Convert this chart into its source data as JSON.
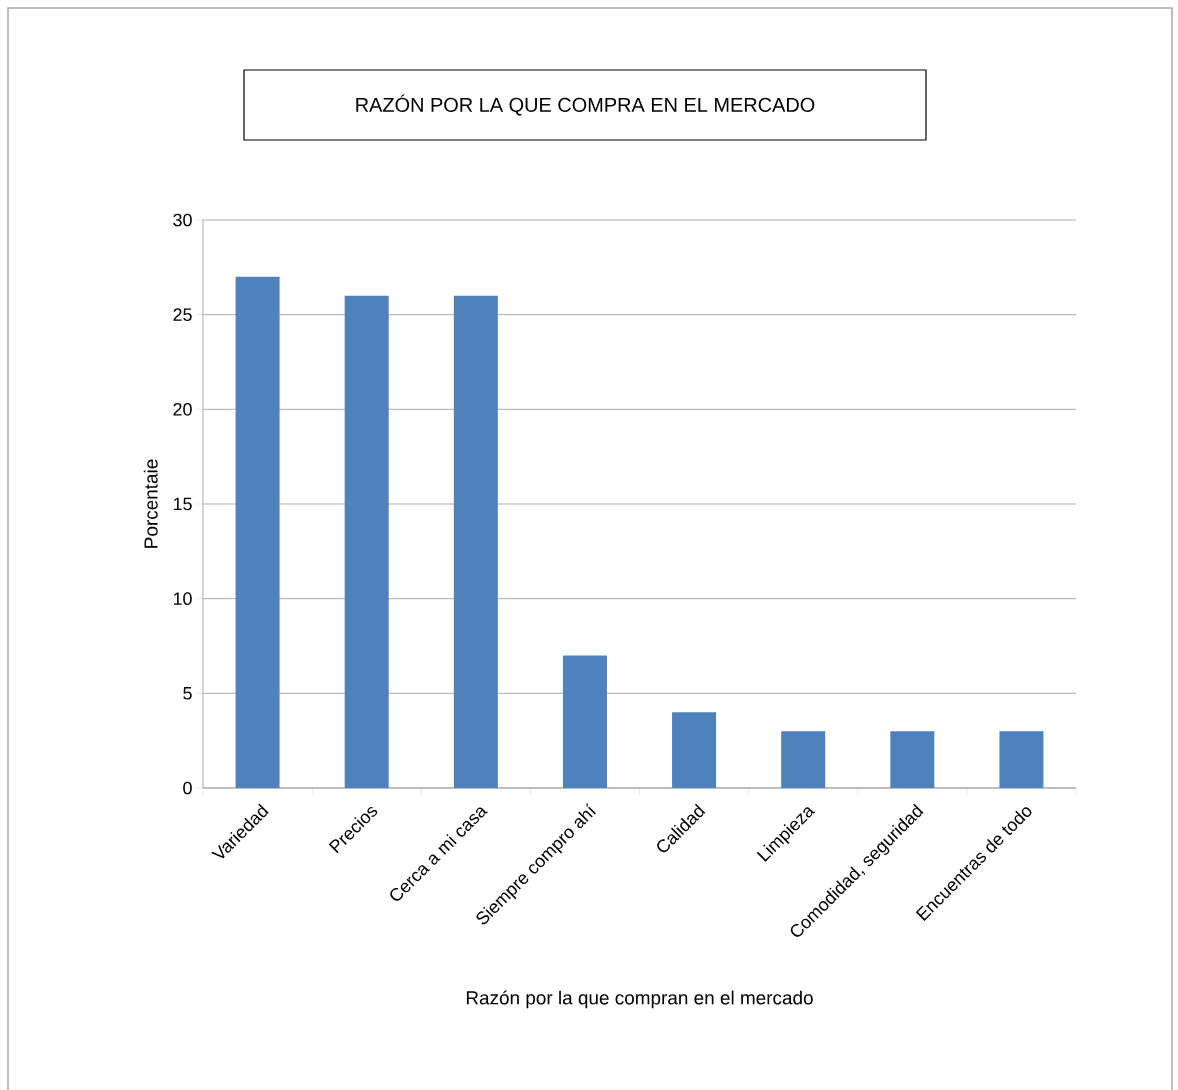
{
  "chart_data": {
    "type": "bar",
    "title": "RAZÓN POR LA QUE COMPRA EN EL MERCADO",
    "xlabel": "Razón por la que compran en el mercado",
    "ylabel": "Porcentaie",
    "categories": [
      "Variedad",
      "Precios",
      "Cerca a mi casa",
      "Siempre compro ahí",
      "Calidad",
      "Limpieza",
      "Comodidad, seguridad",
      "Encuentras de todo"
    ],
    "values": [
      27,
      26,
      26,
      7,
      4,
      3,
      3,
      3
    ],
    "color": "#4f81bd",
    "ylim": [
      0,
      30
    ],
    "yticks": [
      0,
      5,
      10,
      15,
      20,
      25,
      30
    ],
    "grid": "y"
  }
}
